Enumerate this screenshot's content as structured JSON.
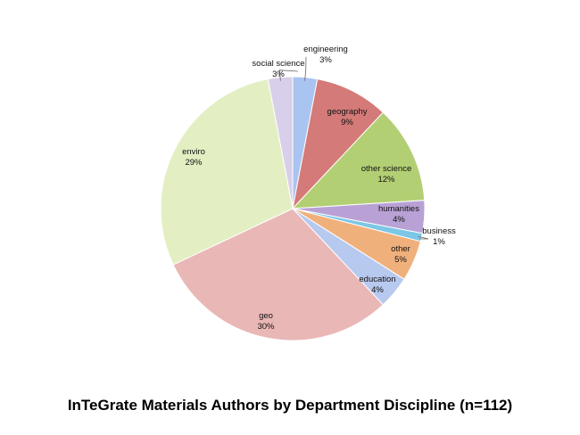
{
  "chart_data": {
    "type": "pie",
    "title": "InTeGrate Materials Authors by Department Discipline (n=112)",
    "start": "clockwise from 12 o'clock",
    "slices": [
      {
        "label": "engineering",
        "pct_label": "3%",
        "value": 3,
        "color": "#a9c4f0"
      },
      {
        "label": "geography",
        "pct_label": "9%",
        "value": 9,
        "color": "#d47a78"
      },
      {
        "label": "other science",
        "pct_label": "12%",
        "value": 12,
        "color": "#b3cf74"
      },
      {
        "label": "humanities",
        "pct_label": "4%",
        "value": 4,
        "color": "#b9a1d6"
      },
      {
        "label": "business",
        "pct_label": "1%",
        "value": 1,
        "color": "#7cc7e6"
      },
      {
        "label": "other",
        "pct_label": "5%",
        "value": 5,
        "color": "#f0b07c"
      },
      {
        "label": "education",
        "pct_label": "4%",
        "value": 4,
        "color": "#b7c9ee"
      },
      {
        "label": "geo",
        "pct_label": "30%",
        "value": 30,
        "color": "#e9b7b6"
      },
      {
        "label": "enviro",
        "pct_label": "29%",
        "value": 29,
        "color": "#e3efc2"
      },
      {
        "label": "social science",
        "pct_label": "3%",
        "value": 3,
        "color": "#d8cfea"
      }
    ]
  }
}
